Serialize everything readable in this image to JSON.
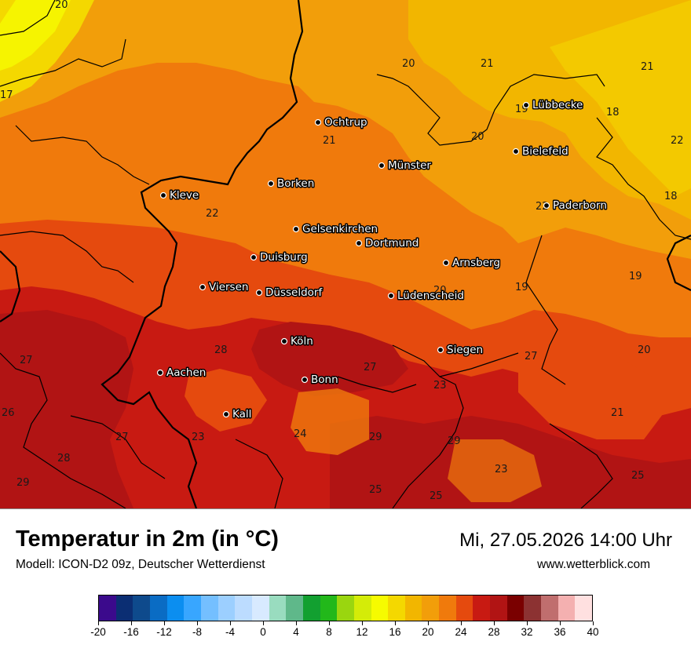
{
  "map": {
    "cities": [
      {
        "name": "Ochtrup"
      },
      {
        "name": "Lübbecke"
      },
      {
        "name": "Bielefeld"
      },
      {
        "name": "Münster"
      },
      {
        "name": "Borken"
      },
      {
        "name": "Kleve"
      },
      {
        "name": "Paderborn"
      },
      {
        "name": "Gelsenkirchen"
      },
      {
        "name": "Dortmund"
      },
      {
        "name": "Duisburg"
      },
      {
        "name": "Arnsberg"
      },
      {
        "name": "Viersen"
      },
      {
        "name": "Düsseldorf"
      },
      {
        "name": "Lüdenscheid"
      },
      {
        "name": "Köln"
      },
      {
        "name": "Siegen"
      },
      {
        "name": "Aachen"
      },
      {
        "name": "Bonn"
      },
      {
        "name": "Kall"
      }
    ],
    "values": [
      "20",
      "17",
      "20",
      "21",
      "21",
      "18",
      "22",
      "19",
      "20",
      "21",
      "22",
      "22",
      "18",
      "19",
      "19",
      "20",
      "28",
      "27",
      "27",
      "20",
      "27",
      "23",
      "26",
      "21",
      "27",
      "23",
      "24",
      "29",
      "29",
      "28",
      "23",
      "29",
      "25",
      "25",
      "25"
    ]
  },
  "footer": {
    "title": "Temperatur in 2m (in °C)",
    "subtitle": "Modell: ICON-D2 09z, Deutscher Wetterdienst",
    "datetime": "Mi, 27.05.2026 14:00 Uhr",
    "website": "www.wetterblick.com"
  },
  "legend": {
    "colors": [
      "#3b0a8c",
      "#0b2e73",
      "#0e4a8c",
      "#0a6cc4",
      "#0b8ef0",
      "#38a6ff",
      "#74bfff",
      "#9ccfff",
      "#bcdcff",
      "#d8eaff",
      "#99dcbf",
      "#5fb88a",
      "#12a030",
      "#22b81a",
      "#9ad60f",
      "#d4ec08",
      "#f6fb00",
      "#f4d800",
      "#f2b600",
      "#f29e0a",
      "#f07a0c",
      "#e54a0e",
      "#c81a12",
      "#b11414",
      "#7a0000",
      "#8c3232",
      "#c06e6e",
      "#f4b0b0",
      "#ffe0e0"
    ],
    "tick_labels": [
      "-20",
      "-16",
      "-12",
      "-8",
      "-4",
      "0",
      "4",
      "8",
      "12",
      "16",
      "20",
      "24",
      "28",
      "32",
      "36",
      "40"
    ],
    "min": -20,
    "max": 40
  }
}
